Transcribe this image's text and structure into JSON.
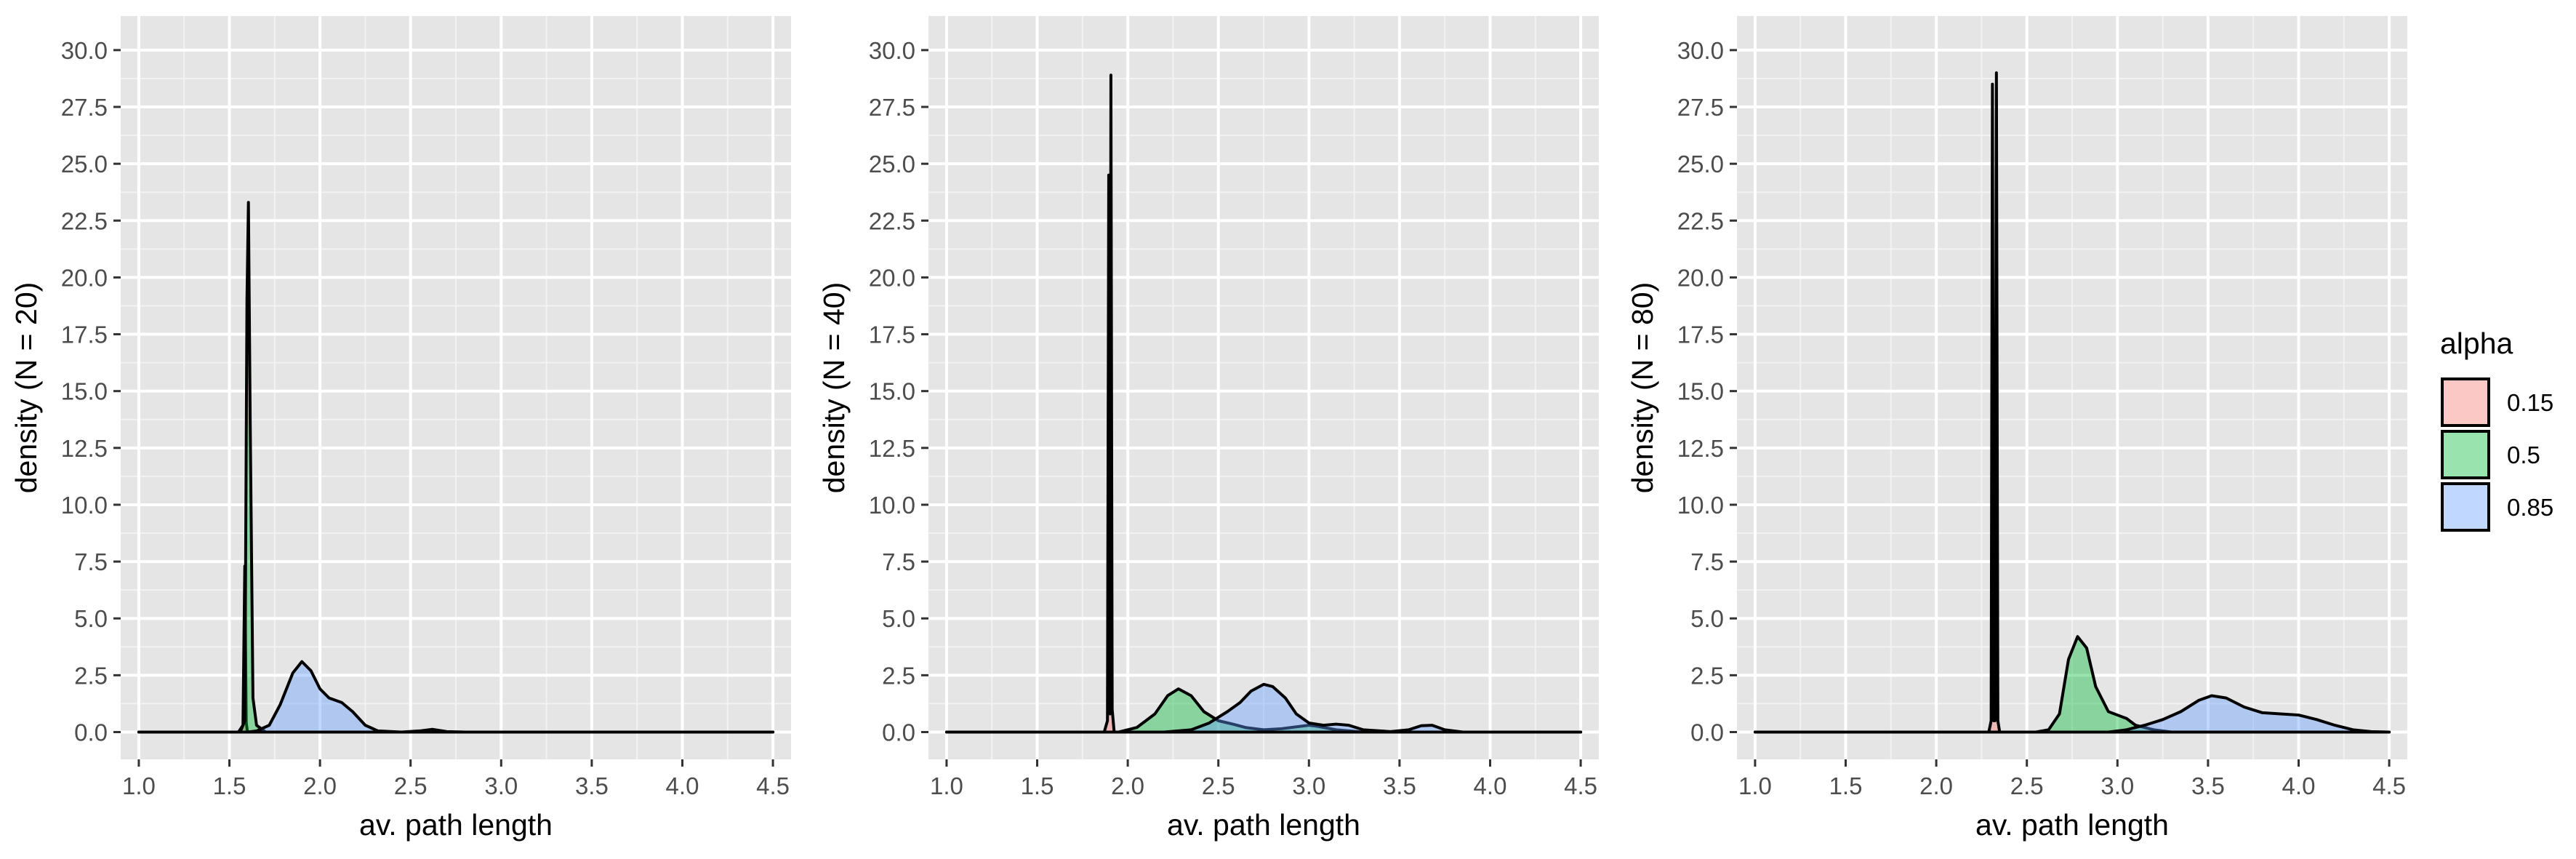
{
  "chart_data": [
    {
      "type": "area",
      "xlabel": "av. path length",
      "ylabel": "density (N = 20)",
      "xlim": [
        0.9,
        4.6
      ],
      "ylim": [
        -1.2,
        31.5
      ],
      "x_ticks": [
        "1.0",
        "1.5",
        "2.0",
        "2.5",
        "3.0",
        "3.5",
        "4.0",
        "4.5"
      ],
      "y_ticks": [
        "0.0",
        "2.5",
        "5.0",
        "7.5",
        "10.0",
        "12.5",
        "15.0",
        "17.5",
        "20.0",
        "22.5",
        "25.0",
        "27.5",
        "30.0"
      ],
      "grid": true,
      "series": [
        {
          "name": "0.15",
          "points": [
            [
              1.0,
              0
            ],
            [
              1.55,
              0
            ],
            [
              1.575,
              0.3
            ],
            [
              1.585,
              7.3
            ],
            [
              1.593,
              0.4
            ],
            [
              1.6,
              0
            ],
            [
              4.5,
              0
            ]
          ]
        },
        {
          "name": "0.5",
          "points": [
            [
              1.0,
              0
            ],
            [
              1.56,
              0
            ],
            [
              1.585,
              0.5
            ],
            [
              1.597,
              19.0
            ],
            [
              1.605,
              23.3
            ],
            [
              1.615,
              13.5
            ],
            [
              1.63,
              1.5
            ],
            [
              1.65,
              0.3
            ],
            [
              1.7,
              0
            ],
            [
              4.5,
              0
            ]
          ]
        },
        {
          "name": "0.85",
          "points": [
            [
              1.0,
              0
            ],
            [
              1.6,
              0
            ],
            [
              1.65,
              0.05
            ],
            [
              1.72,
              0.3
            ],
            [
              1.78,
              1.2
            ],
            [
              1.85,
              2.6
            ],
            [
              1.9,
              3.1
            ],
            [
              1.95,
              2.7
            ],
            [
              2.0,
              1.9
            ],
            [
              2.05,
              1.5
            ],
            [
              2.12,
              1.3
            ],
            [
              2.18,
              0.9
            ],
            [
              2.25,
              0.3
            ],
            [
              2.32,
              0.05
            ],
            [
              2.45,
              0
            ],
            [
              2.55,
              0.05
            ],
            [
              2.62,
              0.12
            ],
            [
              2.7,
              0.02
            ],
            [
              2.8,
              0
            ],
            [
              4.5,
              0
            ]
          ]
        }
      ]
    },
    {
      "type": "area",
      "xlabel": "av. path length",
      "ylabel": "density (N = 40)",
      "xlim": [
        0.9,
        4.6
      ],
      "ylim": [
        -1.2,
        31.5
      ],
      "x_ticks": [
        "1.0",
        "1.5",
        "2.0",
        "2.5",
        "3.0",
        "3.5",
        "4.0",
        "4.5"
      ],
      "y_ticks": [
        "0.0",
        "2.5",
        "5.0",
        "7.5",
        "10.0",
        "12.5",
        "15.0",
        "17.5",
        "20.0",
        "22.5",
        "25.0",
        "27.5",
        "30.0"
      ],
      "grid": true,
      "series": [
        {
          "name": "0.15",
          "points": [
            [
              1.0,
              0
            ],
            [
              1.87,
              0
            ],
            [
              1.888,
              0.5
            ],
            [
              1.895,
              24.5
            ],
            [
              1.902,
              0.8
            ],
            [
              1.907,
              28.9
            ],
            [
              1.914,
              1.0
            ],
            [
              1.925,
              0
            ],
            [
              4.5,
              0
            ]
          ]
        },
        {
          "name": "0.5",
          "points": [
            [
              1.0,
              0
            ],
            [
              1.95,
              0
            ],
            [
              2.05,
              0.2
            ],
            [
              2.15,
              0.8
            ],
            [
              2.22,
              1.6
            ],
            [
              2.28,
              1.9
            ],
            [
              2.35,
              1.6
            ],
            [
              2.42,
              0.9
            ],
            [
              2.5,
              0.5
            ],
            [
              2.58,
              0.35
            ],
            [
              2.65,
              0.2
            ],
            [
              2.75,
              0.1
            ],
            [
              2.85,
              0.15
            ],
            [
              3.0,
              0.3
            ],
            [
              3.05,
              0.25
            ],
            [
              3.15,
              0.1
            ],
            [
              3.3,
              0
            ],
            [
              4.5,
              0
            ]
          ]
        },
        {
          "name": "0.85",
          "points": [
            [
              1.0,
              0
            ],
            [
              2.2,
              0
            ],
            [
              2.35,
              0.1
            ],
            [
              2.45,
              0.4
            ],
            [
              2.55,
              0.9
            ],
            [
              2.62,
              1.3
            ],
            [
              2.68,
              1.8
            ],
            [
              2.75,
              2.1
            ],
            [
              2.8,
              2.0
            ],
            [
              2.87,
              1.5
            ],
            [
              2.93,
              0.8
            ],
            [
              3.0,
              0.4
            ],
            [
              3.08,
              0.3
            ],
            [
              3.15,
              0.35
            ],
            [
              3.22,
              0.3
            ],
            [
              3.3,
              0.1
            ],
            [
              3.45,
              0.02
            ],
            [
              3.55,
              0.1
            ],
            [
              3.62,
              0.28
            ],
            [
              3.68,
              0.3
            ],
            [
              3.75,
              0.1
            ],
            [
              3.85,
              0
            ],
            [
              4.5,
              0
            ]
          ]
        }
      ]
    },
    {
      "type": "area",
      "xlabel": "av. path length",
      "ylabel": "density (N = 80)",
      "xlim": [
        0.9,
        4.6
      ],
      "ylim": [
        -1.2,
        31.5
      ],
      "x_ticks": [
        "1.0",
        "1.5",
        "2.0",
        "2.5",
        "3.0",
        "3.5",
        "4.0",
        "4.5"
      ],
      "y_ticks": [
        "0.0",
        "2.5",
        "5.0",
        "7.5",
        "10.0",
        "12.5",
        "15.0",
        "17.5",
        "20.0",
        "22.5",
        "25.0",
        "27.5",
        "30.0"
      ],
      "grid": true,
      "series": [
        {
          "name": "0.15",
          "points": [
            [
              1.0,
              0
            ],
            [
              2.29,
              0
            ],
            [
              2.303,
              0.5
            ],
            [
              2.31,
              28.5
            ],
            [
              2.317,
              0.5
            ],
            [
              2.324,
              0.5
            ],
            [
              2.332,
              29.0
            ],
            [
              2.34,
              0.5
            ],
            [
              2.35,
              0
            ],
            [
              4.5,
              0
            ]
          ]
        },
        {
          "name": "0.5",
          "points": [
            [
              1.0,
              0
            ],
            [
              2.55,
              0
            ],
            [
              2.62,
              0.1
            ],
            [
              2.68,
              0.8
            ],
            [
              2.73,
              3.2
            ],
            [
              2.78,
              4.2
            ],
            [
              2.83,
              3.7
            ],
            [
              2.88,
              2.0
            ],
            [
              2.95,
              0.9
            ],
            [
              3.0,
              0.75
            ],
            [
              3.05,
              0.6
            ],
            [
              3.1,
              0.3
            ],
            [
              3.2,
              0.1
            ],
            [
              3.3,
              0
            ],
            [
              4.5,
              0
            ]
          ]
        },
        {
          "name": "0.85",
          "points": [
            [
              1.0,
              0
            ],
            [
              2.95,
              0
            ],
            [
              3.05,
              0.1
            ],
            [
              3.15,
              0.3
            ],
            [
              3.25,
              0.55
            ],
            [
              3.35,
              0.9
            ],
            [
              3.45,
              1.4
            ],
            [
              3.52,
              1.6
            ],
            [
              3.6,
              1.5
            ],
            [
              3.7,
              1.1
            ],
            [
              3.8,
              0.85
            ],
            [
              3.9,
              0.8
            ],
            [
              4.0,
              0.75
            ],
            [
              4.1,
              0.55
            ],
            [
              4.2,
              0.3
            ],
            [
              4.3,
              0.1
            ],
            [
              4.4,
              0.02
            ],
            [
              4.5,
              0
            ]
          ]
        }
      ]
    }
  ],
  "legend": {
    "title": "alpha",
    "placement": "right",
    "items": [
      {
        "label": "0.15",
        "color": "#F8766D"
      },
      {
        "label": "0.5",
        "color": "#00BA38"
      },
      {
        "label": "0.85",
        "color": "#619CFF"
      }
    ]
  },
  "style": {
    "panel_background": "#E5E5E5",
    "grid_major": "#FFFFFF",
    "grid_minor": "#F2F2F2",
    "fill_opacity": 0.4,
    "outline": "#000000"
  }
}
